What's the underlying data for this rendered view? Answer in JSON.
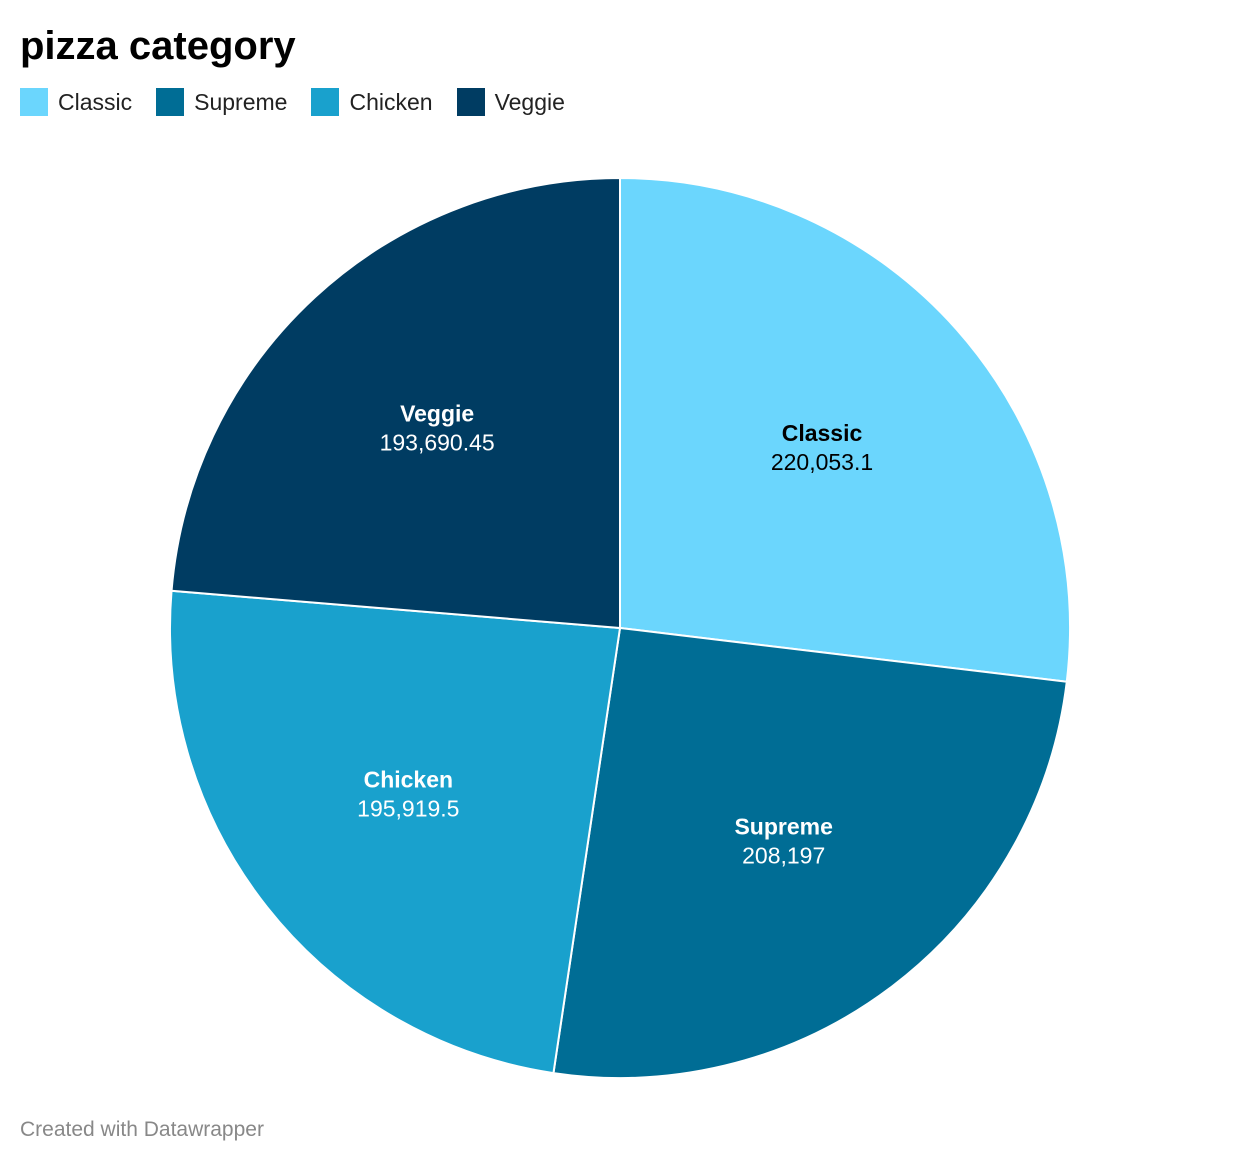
{
  "chart_data": {
    "type": "pie",
    "title": "pizza category",
    "categories": [
      "Classic",
      "Supreme",
      "Chicken",
      "Veggie"
    ],
    "values": [
      220053.1,
      208197,
      195919.5,
      193690.45
    ],
    "value_labels": [
      "220,053.1",
      "208,197",
      "195,919.5",
      "193,690.45"
    ],
    "colors": [
      "#6bd6fd",
      "#006d95",
      "#19a1cd",
      "#003c62"
    ],
    "label_colors": [
      "#000000",
      "#ffffff",
      "#ffffff",
      "#ffffff"
    ],
    "start_angle": "12 o'clock",
    "direction": "clockwise",
    "legend_position": "top-left"
  },
  "footer": {
    "credit": "Created with Datawrapper"
  }
}
